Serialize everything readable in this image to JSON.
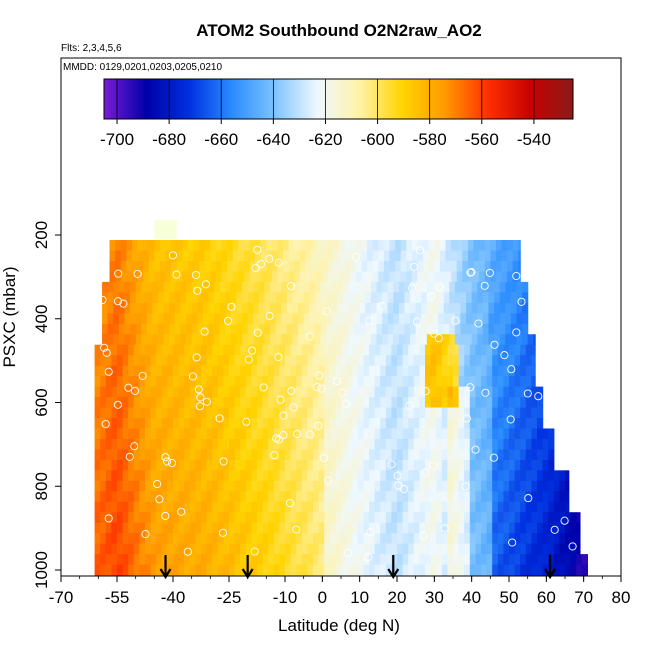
{
  "chart_data": {
    "type": "heatmap",
    "title": "ATOM2 Southbound O2N2raw_AO2",
    "subtitle_flights": "Flts: 2,3,4,5,6",
    "subtitle_dates": "MMDD: 0129,0201,0203,0205,0210",
    "xlabel": "Latitude (deg N)",
    "ylabel": "PSXC (mbar)",
    "xlim": [
      -70,
      80
    ],
    "ylim": [
      1000,
      200
    ],
    "x_ticks": [
      -70,
      -55,
      -40,
      -25,
      -10,
      0,
      10,
      20,
      30,
      40,
      50,
      60,
      70,
      80
    ],
    "y_ticks": [
      200,
      400,
      600,
      800,
      1000
    ],
    "colorbar": {
      "range": [
        -705,
        -525
      ],
      "ticks": [
        -700,
        -680,
        -660,
        -640,
        -620,
        -600,
        -580,
        -560,
        -540
      ],
      "colors": [
        "#7a1bd6",
        "#0000a8",
        "#0030e0",
        "#2a8cff",
        "#7ec3ff",
        "#eef8ff",
        "#fff2a6",
        "#ffd400",
        "#ff9a00",
        "#ff3000",
        "#c80000",
        "#8b1a1a"
      ]
    },
    "profile_markers_latitude": [
      -42,
      -20,
      19,
      61
    ],
    "field_model": "O2N2 ≈ -580 at 55S rising toward -570 near 55S low altitudes, crossing -615 near the equator, reaching -650 near 50N and -680 near 70N surface",
    "grid": false
  }
}
